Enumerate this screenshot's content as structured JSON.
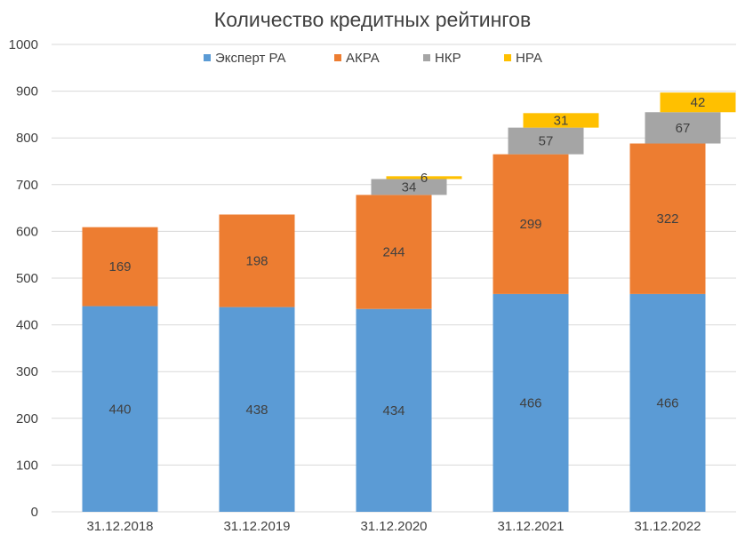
{
  "chart_data": {
    "type": "bar",
    "stacked": true,
    "title": "Количество кредитных рейтингов",
    "categories": [
      "31.12.2018",
      "31.12.2019",
      "31.12.2020",
      "31.12.2021",
      "31.12.2022"
    ],
    "series": [
      {
        "name": "Эксперт РА",
        "color": "#5b9bd5",
        "values": [
          440,
          438,
          434,
          466,
          466
        ],
        "labels": [
          "440",
          "438",
          "434",
          "466",
          "466"
        ]
      },
      {
        "name": "АКРА",
        "color": "#ed7d31",
        "values": [
          169,
          198,
          244,
          299,
          322
        ],
        "labels": [
          "169",
          "198",
          "244",
          "299",
          "322"
        ]
      },
      {
        "name": "НКР",
        "color": "#a5a5a5",
        "values": [
          0,
          0,
          34,
          57,
          67
        ],
        "labels": [
          "",
          "",
          "34",
          "57",
          "67"
        ]
      },
      {
        "name": "НРА",
        "color": "#ffc000",
        "values": [
          0,
          0,
          6,
          31,
          42
        ],
        "labels": [
          "",
          "",
          "6",
          "31",
          "42"
        ]
      }
    ],
    "ylim": [
      0,
      1000
    ],
    "yticks": [
      "0",
      "100",
      "200",
      "300",
      "400",
      "500",
      "600",
      "700",
      "800",
      "900",
      "1000"
    ],
    "grid": true,
    "legend": "top"
  }
}
